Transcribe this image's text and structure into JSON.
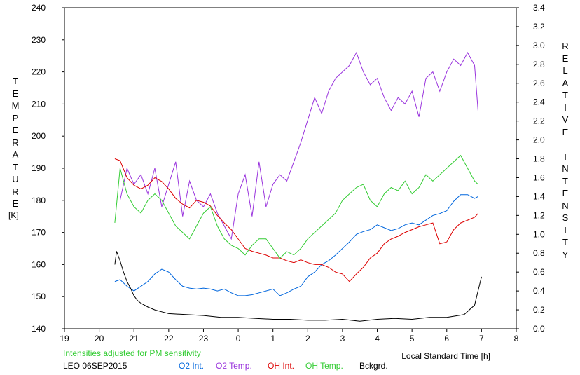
{
  "chart_data": {
    "type": "line",
    "title": "",
    "note": "Intensities adjusted for PM sensitivity",
    "station": "LEO 06SEP2015",
    "xlabel": "Local Standard Time [h]",
    "ylabel_left": "TEMPERATURE",
    "ylabel_left_unit": "[K]",
    "ylabel_right": "RELATIVE INTENSITY",
    "x_ticks": [
      "19",
      "20",
      "21",
      "22",
      "23",
      "0",
      "1",
      "2",
      "3",
      "4",
      "5",
      "6",
      "7",
      "8"
    ],
    "xlim": [
      19,
      32
    ],
    "y_left_ticks": [
      140,
      150,
      160,
      170,
      180,
      190,
      200,
      210,
      220,
      230,
      240
    ],
    "ylim_left": [
      140,
      240
    ],
    "y_right_ticks": [
      "0.0",
      "0.2",
      "0.4",
      "0.6",
      "0.8",
      "1.0",
      "1.2",
      "1.4",
      "1.6",
      "1.8",
      "2.0",
      "2.2",
      "2.4",
      "2.6",
      "2.8",
      "3.0",
      "3.2",
      "3.4"
    ],
    "ylim_right": [
      0,
      3.4
    ],
    "grid": false,
    "legend_position": "bottom",
    "series": [
      {
        "name": "O2 Int.",
        "color": "#0066dd",
        "axis": "right",
        "x": [
          20.45,
          20.6,
          20.8,
          21.0,
          21.2,
          21.4,
          21.6,
          21.8,
          22.0,
          22.2,
          22.4,
          22.6,
          22.8,
          23.0,
          23.2,
          23.4,
          23.6,
          23.8,
          24.0,
          24.2,
          24.4,
          24.6,
          24.8,
          25.0,
          25.2,
          25.4,
          25.6,
          25.8,
          26.0,
          26.2,
          26.4,
          26.6,
          26.8,
          27.0,
          27.2,
          27.4,
          27.6,
          27.8,
          28.0,
          28.2,
          28.4,
          28.6,
          28.8,
          29.0,
          29.2,
          29.4,
          29.6,
          29.8,
          30.0,
          30.2,
          30.4,
          30.6,
          30.8,
          30.9
        ],
        "y": [
          0.5,
          0.52,
          0.45,
          0.4,
          0.45,
          0.5,
          0.58,
          0.63,
          0.6,
          0.52,
          0.45,
          0.43,
          0.42,
          0.43,
          0.42,
          0.4,
          0.42,
          0.38,
          0.35,
          0.35,
          0.36,
          0.38,
          0.4,
          0.42,
          0.35,
          0.38,
          0.42,
          0.45,
          0.55,
          0.6,
          0.68,
          0.72,
          0.78,
          0.85,
          0.92,
          1.0,
          1.03,
          1.05,
          1.1,
          1.07,
          1.04,
          1.06,
          1.1,
          1.12,
          1.1,
          1.15,
          1.2,
          1.22,
          1.25,
          1.35,
          1.42,
          1.42,
          1.38,
          1.4
        ]
      },
      {
        "name": "O2 Temp.",
        "color": "#9933dd",
        "axis": "left",
        "x": [
          20.6,
          20.8,
          21.0,
          21.2,
          21.4,
          21.6,
          21.8,
          22.0,
          22.2,
          22.4,
          22.6,
          22.8,
          23.0,
          23.2,
          23.4,
          23.6,
          23.8,
          24.0,
          24.2,
          24.4,
          24.6,
          24.8,
          25.0,
          25.2,
          25.4,
          25.6,
          25.8,
          26.0,
          26.2,
          26.4,
          26.6,
          26.8,
          27.0,
          27.2,
          27.4,
          27.6,
          27.8,
          28.0,
          28.2,
          28.4,
          28.6,
          28.8,
          29.0,
          29.2,
          29.4,
          29.6,
          29.8,
          30.0,
          30.2,
          30.4,
          30.6,
          30.8,
          30.9
        ],
        "y": [
          180,
          190,
          185,
          188,
          182,
          190,
          178,
          185,
          192,
          175,
          186,
          180,
          178,
          182,
          176,
          172,
          168,
          182,
          188,
          175,
          192,
          178,
          185,
          188,
          186,
          192,
          198,
          205,
          212,
          207,
          214,
          218,
          220,
          222,
          226,
          220,
          216,
          218,
          212,
          208,
          212,
          210,
          214,
          206,
          218,
          220,
          214,
          220,
          224,
          222,
          226,
          222,
          208
        ]
      },
      {
        "name": "OH Int.",
        "color": "#dd0000",
        "axis": "right",
        "x": [
          20.45,
          20.6,
          20.8,
          21.0,
          21.2,
          21.4,
          21.6,
          21.8,
          22.0,
          22.2,
          22.4,
          22.6,
          22.8,
          23.0,
          23.2,
          23.4,
          23.6,
          23.8,
          24.0,
          24.2,
          24.4,
          24.6,
          24.8,
          25.0,
          25.2,
          25.4,
          25.6,
          25.8,
          26.0,
          26.2,
          26.4,
          26.6,
          26.8,
          27.0,
          27.2,
          27.4,
          27.6,
          27.8,
          28.0,
          28.2,
          28.4,
          28.6,
          28.8,
          29.0,
          29.2,
          29.4,
          29.6,
          29.8,
          30.0,
          30.2,
          30.4,
          30.6,
          30.8,
          30.9
        ],
        "y": [
          1.8,
          1.78,
          1.6,
          1.52,
          1.48,
          1.52,
          1.6,
          1.56,
          1.48,
          1.38,
          1.32,
          1.28,
          1.36,
          1.34,
          1.3,
          1.2,
          1.12,
          1.05,
          0.95,
          0.85,
          0.82,
          0.8,
          0.78,
          0.75,
          0.75,
          0.72,
          0.7,
          0.73,
          0.7,
          0.68,
          0.68,
          0.65,
          0.6,
          0.58,
          0.5,
          0.58,
          0.65,
          0.75,
          0.8,
          0.9,
          0.95,
          0.98,
          1.02,
          1.05,
          1.08,
          1.1,
          1.12,
          0.9,
          0.92,
          1.05,
          1.12,
          1.15,
          1.18,
          1.22
        ]
      },
      {
        "name": "OH Temp.",
        "color": "#33cc33",
        "axis": "left",
        "x": [
          20.45,
          20.6,
          20.8,
          21.0,
          21.2,
          21.4,
          21.6,
          21.8,
          22.0,
          22.2,
          22.4,
          22.6,
          22.8,
          23.0,
          23.2,
          23.4,
          23.6,
          23.8,
          24.0,
          24.2,
          24.4,
          24.6,
          24.8,
          25.0,
          25.2,
          25.4,
          25.6,
          25.8,
          26.0,
          26.2,
          26.4,
          26.6,
          26.8,
          27.0,
          27.2,
          27.4,
          27.6,
          27.8,
          28.0,
          28.2,
          28.4,
          28.6,
          28.8,
          29.0,
          29.2,
          29.4,
          29.6,
          29.8,
          30.0,
          30.2,
          30.4,
          30.6,
          30.8,
          30.9
        ],
        "y": [
          173,
          190,
          182,
          178,
          176,
          180,
          182,
          180,
          176,
          172,
          170,
          168,
          172,
          176,
          178,
          172,
          168,
          166,
          165,
          163,
          166,
          168,
          168,
          165,
          162,
          164,
          163,
          165,
          168,
          170,
          172,
          174,
          176,
          180,
          182,
          184,
          185,
          180,
          178,
          182,
          184,
          183,
          186,
          182,
          184,
          188,
          186,
          188,
          190,
          192,
          194,
          190,
          186,
          185
        ]
      },
      {
        "name": "Bckgrd.",
        "color": "#000000",
        "axis": "right",
        "x": [
          20.45,
          20.5,
          20.6,
          20.7,
          20.8,
          20.9,
          21.0,
          21.1,
          21.2,
          21.4,
          21.6,
          21.8,
          22.0,
          22.5,
          23.0,
          23.5,
          24.0,
          24.5,
          25.0,
          25.5,
          26.0,
          26.5,
          27.0,
          27.5,
          28.0,
          28.5,
          29.0,
          29.5,
          30.0,
          30.5,
          30.8,
          30.9,
          31.0
        ],
        "y": [
          0.68,
          0.82,
          0.72,
          0.6,
          0.5,
          0.43,
          0.35,
          0.3,
          0.27,
          0.23,
          0.2,
          0.18,
          0.16,
          0.15,
          0.14,
          0.12,
          0.12,
          0.11,
          0.1,
          0.1,
          0.09,
          0.09,
          0.1,
          0.08,
          0.1,
          0.11,
          0.1,
          0.12,
          0.12,
          0.15,
          0.25,
          0.4,
          0.55
        ]
      }
    ]
  }
}
